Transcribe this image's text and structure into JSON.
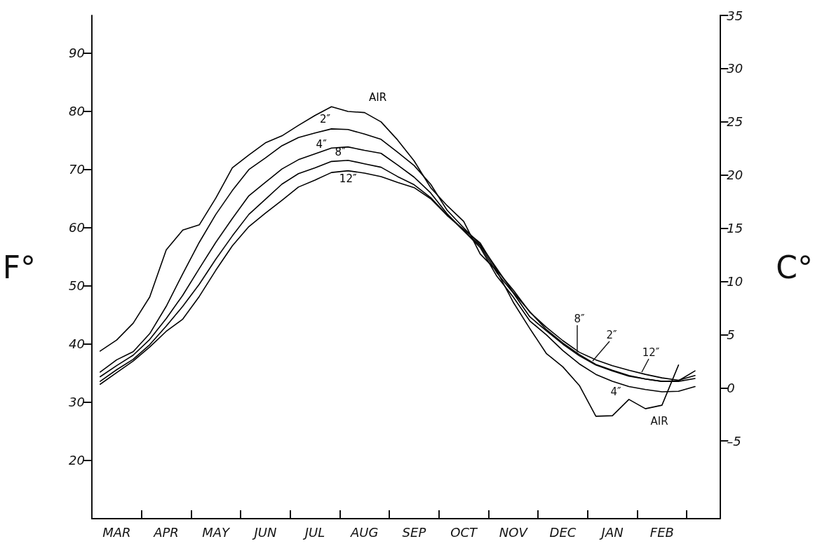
{
  "chart_data": {
    "type": "line",
    "ylabel": "F°",
    "y2label": "C°",
    "categories": [
      null,
      "MAR",
      null,
      null,
      "APR",
      null,
      null,
      "MAY",
      null,
      null,
      "JUN",
      null,
      null,
      "JUL",
      null,
      null,
      "AUG",
      null,
      null,
      "SEP",
      null,
      null,
      "OCT",
      null,
      null,
      "NOV",
      null,
      null,
      "DEC",
      null,
      null,
      "JAN",
      null,
      null,
      "FEB",
      null,
      null,
      null
    ],
    "ylim": [
      10,
      96.5
    ],
    "yticks": [
      20,
      30,
      40,
      50,
      60,
      70,
      80,
      90
    ],
    "y2lim": [
      -12.3,
      35
    ],
    "y2ticks": [
      {
        "value": -5,
        "label": "–5"
      },
      0,
      5,
      10,
      15,
      20,
      25,
      30,
      35
    ],
    "grid": false,
    "legend": false,
    "marker": "none",
    "line_style": "solid",
    "series": [
      {
        "name": "AIR",
        "color": "#000000",
        "values": [
          38.8,
          40.7,
          43.6,
          48.1,
          56.2,
          59.6,
          60.5,
          65.1,
          70.3,
          72.5,
          74.6,
          75.8,
          77.6,
          79.3,
          80.8,
          80.0,
          79.8,
          78.2,
          75.1,
          71.5,
          66.9,
          63.8,
          61.1,
          55.5,
          52.6,
          47.2,
          42.7,
          38.4,
          36.1,
          32.9,
          27.6,
          27.7,
          30.5,
          28.9,
          29.5,
          36.4,
          null,
          null
        ]
      },
      {
        "name": "2″",
        "color": "#000000",
        "values": [
          35.2,
          37.3,
          38.7,
          41.8,
          46.5,
          52.1,
          57.5,
          62.3,
          66.4,
          70.0,
          72.0,
          74.1,
          75.5,
          76.3,
          77.0,
          76.9,
          76.1,
          75.2,
          73.0,
          70.7,
          67.5,
          63.0,
          60.0,
          57.1,
          53.0,
          48.9,
          45.6,
          42.5,
          40.2,
          38.2,
          36.5,
          35.5,
          34.6,
          34.0,
          33.6,
          33.7,
          35.4,
          null
        ]
      },
      {
        "name": "4″",
        "color": "#000000",
        "values": [
          34.4,
          36.3,
          38.1,
          40.8,
          44.4,
          48.4,
          53.0,
          57.5,
          61.6,
          65.5,
          67.8,
          70.1,
          71.7,
          72.7,
          73.7,
          73.9,
          73.3,
          72.8,
          70.8,
          68.7,
          66.0,
          62.4,
          59.5,
          56.6,
          51.7,
          48.1,
          44.0,
          41.6,
          38.9,
          36.6,
          34.8,
          33.6,
          32.7,
          32.2,
          31.8,
          31.9,
          32.7,
          null
        ]
      },
      {
        "name": "8″",
        "color": "#000000",
        "values": [
          33.6,
          35.6,
          37.4,
          39.9,
          43.1,
          46.5,
          50.3,
          54.6,
          58.6,
          62.3,
          64.9,
          67.5,
          69.3,
          70.3,
          71.4,
          71.6,
          71.0,
          70.4,
          68.8,
          67.4,
          65.2,
          62.2,
          59.5,
          56.9,
          52.3,
          48.8,
          44.7,
          42.3,
          40.0,
          38.0,
          36.4,
          35.4,
          34.5,
          34.0,
          33.6,
          33.6,
          34.1,
          null
        ]
      },
      {
        "name": "12″",
        "color": "#000000",
        "values": [
          33.1,
          35.1,
          37.1,
          39.5,
          42.2,
          44.3,
          48.2,
          52.7,
          56.9,
          60.2,
          62.5,
          64.7,
          67.0,
          68.2,
          69.5,
          69.8,
          69.4,
          68.8,
          67.8,
          66.9,
          65.0,
          62.1,
          59.7,
          57.4,
          52.7,
          49.3,
          45.5,
          42.9,
          40.6,
          38.6,
          37.3,
          36.3,
          35.5,
          34.8,
          34.2,
          33.8,
          34.6,
          null
        ]
      }
    ],
    "annotations": [
      "AIR",
      {
        "text": "8″",
        "y": 38.6
      },
      "2″",
      "12″",
      "4″"
    ]
  }
}
